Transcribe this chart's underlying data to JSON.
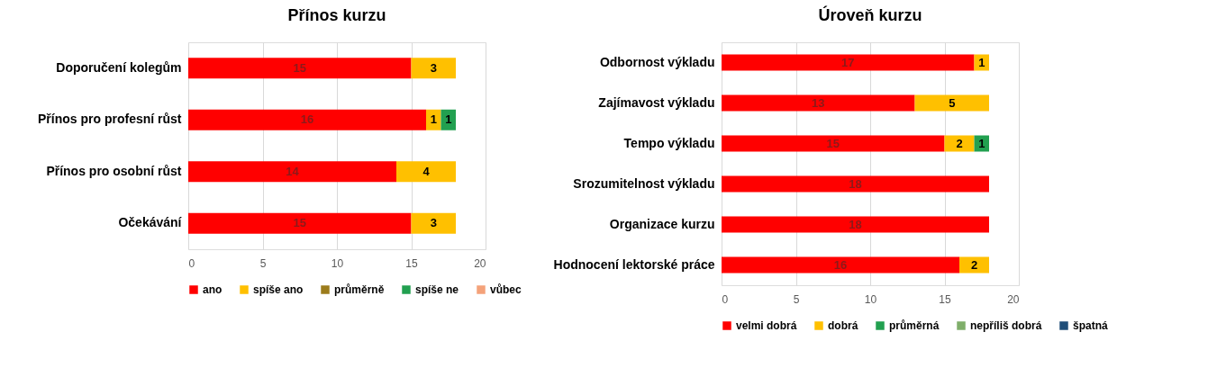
{
  "chart_data": [
    {
      "type": "bar",
      "orientation": "horizontal",
      "stacked": true,
      "title": "Přínos kurzu",
      "categories": [
        "Doporučení kolegům",
        "Přínos pro profesní růst",
        "Přínos pro osobní růst",
        "Očekávání"
      ],
      "series": [
        {
          "name": "ano",
          "color": "#ff0000",
          "values": [
            15,
            16,
            14,
            15
          ]
        },
        {
          "name": "spíše ano",
          "color": "#ffc000",
          "values": [
            3,
            1,
            4,
            3
          ]
        },
        {
          "name": "průměrně",
          "color": "#9c7c1c",
          "values": [
            null,
            null,
            null,
            null
          ]
        },
        {
          "name": "spíše ne",
          "color": "#22a050",
          "values": [
            null,
            1,
            null,
            null
          ]
        },
        {
          "name": "vůbec",
          "color": "#f4a27a",
          "values": [
            null,
            null,
            null,
            null
          ]
        }
      ],
      "xlim": [
        0,
        20
      ],
      "xticks": [
        0,
        5,
        10,
        15,
        20
      ],
      "grid": "x",
      "legend": "bottom",
      "data_labels": true
    },
    {
      "type": "bar",
      "orientation": "horizontal",
      "stacked": true,
      "title": "Úroveň kurzu",
      "categories": [
        "Odbornost výkladu",
        "Zajímavost výkladu",
        "Tempo výkladu",
        "Srozumitelnost výkladu",
        "Organizace kurzu",
        "Hodnocení lektorské práce"
      ],
      "series": [
        {
          "name": "velmi dobrá",
          "color": "#ff0000",
          "values": [
            17,
            13,
            15,
            18,
            18,
            16
          ]
        },
        {
          "name": "dobrá",
          "color": "#ffc000",
          "values": [
            1,
            5,
            2,
            null,
            null,
            2
          ]
        },
        {
          "name": "průměrná",
          "color": "#22a050",
          "values": [
            null,
            null,
            1,
            null,
            null,
            null
          ]
        },
        {
          "name": "nepříliš dobrá",
          "color": "#7fae6a",
          "values": [
            null,
            null,
            null,
            null,
            null,
            null
          ]
        },
        {
          "name": "špatná",
          "color": "#1f4e79",
          "values": [
            null,
            null,
            null,
            null,
            null,
            null
          ]
        }
      ],
      "xlim": [
        0,
        20
      ],
      "xticks": [
        0,
        5,
        10,
        15,
        20
      ],
      "grid": "x",
      "legend": "bottom",
      "data_labels": true
    }
  ]
}
